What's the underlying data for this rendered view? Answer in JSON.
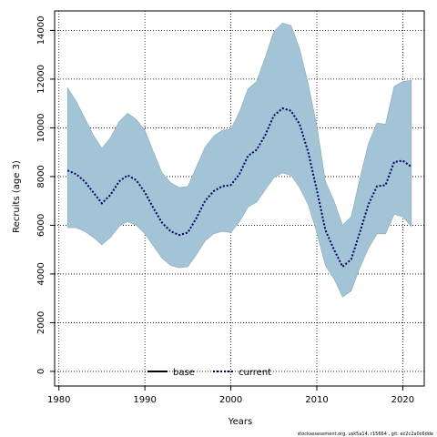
{
  "chart_data": {
    "type": "line",
    "title": "",
    "xlabel": "Years",
    "ylabel": "Recruits (age 3)",
    "xlim": [
      1979.5,
      2022.5
    ],
    "ylim": [
      -600,
      14800
    ],
    "xticks": [
      1980,
      1990,
      2000,
      2010,
      2020
    ],
    "yticks": [
      0,
      2000,
      4000,
      6000,
      8000,
      10000,
      12000,
      14000
    ],
    "grid": true,
    "grid_style": "dotted",
    "legend": {
      "placement": "bottom-center",
      "entries": [
        "base",
        "current"
      ]
    },
    "x": [
      1981,
      1982,
      1983,
      1984,
      1985,
      1986,
      1987,
      1988,
      1989,
      1990,
      1991,
      1992,
      1993,
      1994,
      1995,
      1996,
      1997,
      1998,
      1999,
      2000,
      2001,
      2002,
      2003,
      2004,
      2005,
      2006,
      2007,
      2008,
      2009,
      2010,
      2011,
      2012,
      2013,
      2014,
      2015,
      2016,
      2017,
      2018,
      2019,
      2020,
      2021
    ],
    "series": [
      {
        "name": "current",
        "color": "#000066",
        "line_style": "dotted",
        "values": [
          8250,
          8100,
          7800,
          7350,
          6900,
          7250,
          7800,
          8050,
          7850,
          7350,
          6700,
          6100,
          5750,
          5600,
          5700,
          6300,
          7000,
          7400,
          7600,
          7650,
          8100,
          8850,
          9100,
          9700,
          10500,
          10800,
          10700,
          10150,
          9000,
          7450,
          5800,
          5000,
          4300,
          4600,
          5700,
          6850,
          7600,
          7650,
          8600,
          8650,
          8400
        ]
      },
      {
        "name": "base",
        "color": "#000000",
        "line_style": "solid",
        "values": [
          8250,
          8100,
          7800,
          7350,
          6900,
          7250,
          7800,
          8050,
          7850,
          7350,
          6700,
          6100,
          5750,
          5600,
          5700,
          6300,
          7000,
          7400,
          7600,
          7650,
          8100,
          8850,
          9100,
          9700,
          10500,
          10800,
          10700,
          10150,
          9000,
          7450,
          5800,
          5000,
          4300,
          4600,
          5700,
          6850,
          7600,
          7650,
          8600,
          8650,
          8400
        ]
      }
    ],
    "confidence_band": {
      "color": "#a3c4d6",
      "lower": [
        5900,
        5900,
        5750,
        5500,
        5200,
        5500,
        5950,
        6150,
        6000,
        5650,
        5150,
        4650,
        4350,
        4250,
        4300,
        4800,
        5350,
        5650,
        5750,
        5700,
        6150,
        6750,
        6950,
        7450,
        7950,
        8150,
        8050,
        7550,
        6850,
        5700,
        4350,
        3800,
        3050,
        3300,
        4250,
        5050,
        5650,
        5650,
        6450,
        6350,
        5950
      ],
      "upper": [
        11650,
        11100,
        10400,
        9700,
        9150,
        9600,
        10250,
        10600,
        10350,
        9900,
        9000,
        8150,
        7750,
        7550,
        7600,
        8400,
        9200,
        9650,
        9900,
        9950,
        10650,
        11600,
        11900,
        12900,
        13950,
        14300,
        14200,
        13250,
        11800,
        10100,
        7800,
        7000,
        6000,
        6350,
        7900,
        9350,
        10200,
        10150,
        11700,
        11900,
        11950
      ]
    }
  },
  "footer_text": "stockassessment.org,  usk5a14,  r15664 ,  git:  ec2c2a0c6dde"
}
